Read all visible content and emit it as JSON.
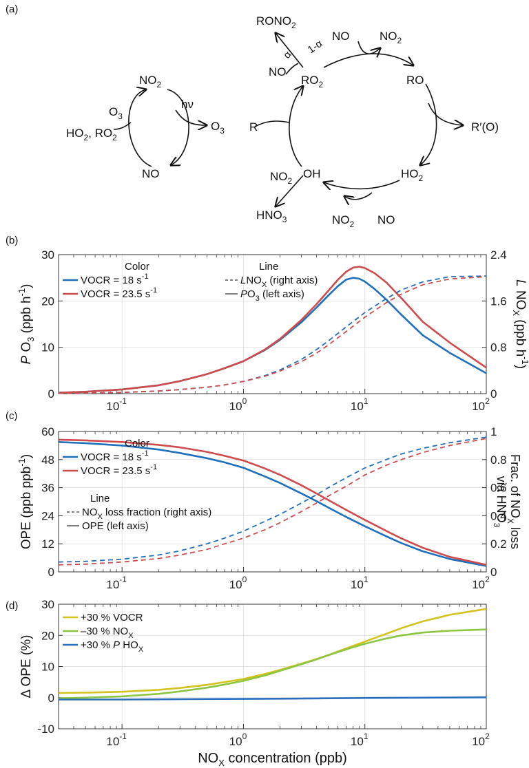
{
  "panel_a": {
    "label": "(a)",
    "left_cycle": {
      "no2": "NO",
      "no2_sub": "2",
      "hv": "hν",
      "o3_out": "O",
      "o3_out_sub": "3",
      "o3_in": "O",
      "o3_in_sub": "3",
      "ho2": "HO",
      "ho2_sub": "2",
      "ro2": ", RO",
      "ro2_sub": "2",
      "no": "NO"
    },
    "right_cycle": {
      "rono2": "RONO",
      "rono2_sub": "2",
      "no_alpha": "NO",
      "alpha": "α",
      "one_minus_alpha": "1-α",
      "no_top": "NO",
      "no2_top": "NO",
      "no2_top_sub": "2",
      "ro2": "RO",
      "ro2_sub": "2",
      "ro": "RO",
      "r": "R",
      "rprime": "R′(O)",
      "oh": "OH",
      "ho2": "HO",
      "ho2_sub": "2",
      "no2_oh": "NO",
      "no2_oh_sub": "2",
      "hno3": "HNO",
      "hno3_sub": "3",
      "no2_bottom": "NO",
      "no2_bottom_sub": "2",
      "no_bottom": "NO"
    }
  },
  "chart_data": [
    {
      "panel": "(b)",
      "type": "line",
      "x_scale": "log",
      "xlim": [
        0.03,
        100
      ],
      "x_ticks": [
        {
          "base": "10",
          "exp": "-1"
        },
        {
          "base": "10",
          "exp": "0"
        },
        {
          "base": "10",
          "exp": "1"
        },
        {
          "base": "10",
          "exp": "2"
        }
      ],
      "ylabel_left": {
        "prefix": "P",
        "main": " O",
        "sub": "3",
        "unit": " (ppb h",
        "unit_sup": "-1",
        "unit_end": ")"
      },
      "ylabel_right": {
        "prefix": "L",
        "main": " NO",
        "sub": "X",
        "unit": " (ppb h",
        "unit_sup": "-1",
        "unit_end": ")"
      },
      "ylim_left": [
        0,
        30
      ],
      "ylim_right": [
        0,
        2.4
      ],
      "yticks_left": [
        "0",
        "10",
        "20",
        "30"
      ],
      "yticks_right": [
        "0",
        "0.8",
        "1.6",
        "2.4"
      ],
      "grid": true,
      "legend": {
        "color_title": "Color",
        "line_title": "Line",
        "entries": [
          {
            "text": "VOCR = 18 s",
            "sup": "-1",
            "color": "#1f6fbf"
          },
          {
            "text": "VOCR = 23.5 s",
            "sup": "-1",
            "color": "#cf4a4a"
          }
        ],
        "line_entries": [
          {
            "prefix": "L",
            "text": "NO",
            "sub": "X",
            "rest": " (right axis)",
            "style": "dashed"
          },
          {
            "prefix": "P",
            "text": "O",
            "sub": "3",
            "rest": " (left axis)",
            "style": "solid"
          }
        ]
      },
      "series": [
        {
          "name": "VOCR = 18 s-1",
          "axis": "left",
          "style": "solid",
          "color": "#1f6fbf",
          "x": [
            0.03,
            0.05,
            0.1,
            0.2,
            0.3,
            0.5,
            0.7,
            1,
            1.5,
            2,
            3,
            4,
            5,
            6,
            7,
            8,
            9,
            10,
            12,
            15,
            20,
            30,
            50,
            100
          ],
          "y": [
            0.2,
            0.4,
            0.9,
            1.8,
            2.7,
            4.2,
            5.5,
            7.0,
            9.4,
            11.6,
            15.4,
            18.6,
            21.2,
            23.2,
            24.6,
            25.0,
            24.8,
            24.2,
            22.6,
            20.3,
            17.0,
            12.6,
            8.8,
            4.4
          ]
        },
        {
          "name": "VOCR = 23.5 s-1",
          "axis": "left",
          "style": "solid",
          "color": "#cf4a4a",
          "x": [
            0.03,
            0.05,
            0.1,
            0.2,
            0.3,
            0.5,
            0.7,
            1,
            1.5,
            2,
            3,
            4,
            5,
            6,
            7,
            8,
            9,
            10,
            12,
            15,
            20,
            30,
            50,
            100
          ],
          "y": [
            0.2,
            0.4,
            0.9,
            1.8,
            2.7,
            4.2,
            5.5,
            7.0,
            9.5,
            11.8,
            15.9,
            19.3,
            22.2,
            24.6,
            26.3,
            27.2,
            27.4,
            27.1,
            26.0,
            24.0,
            20.6,
            15.5,
            11.0,
            5.6
          ]
        },
        {
          "name": "VOCR = 18 s-1",
          "axis": "right",
          "style": "dashed",
          "color": "#1f6fbf",
          "x": [
            0.03,
            0.05,
            0.1,
            0.2,
            0.3,
            0.5,
            0.7,
            1,
            1.5,
            2,
            3,
            4,
            5,
            7,
            10,
            15,
            20,
            30,
            50,
            100
          ],
          "y": [
            0.005,
            0.01,
            0.02,
            0.045,
            0.07,
            0.11,
            0.15,
            0.21,
            0.31,
            0.41,
            0.59,
            0.76,
            0.91,
            1.15,
            1.4,
            1.64,
            1.79,
            1.93,
            2.02,
            2.03
          ]
        },
        {
          "name": "VOCR = 23.5 s-1",
          "axis": "right",
          "style": "dashed",
          "color": "#cf4a4a",
          "x": [
            0.03,
            0.05,
            0.1,
            0.2,
            0.3,
            0.5,
            0.7,
            1,
            1.5,
            2,
            3,
            4,
            5,
            7,
            10,
            15,
            20,
            30,
            50,
            100
          ],
          "y": [
            0.005,
            0.01,
            0.02,
            0.045,
            0.07,
            0.11,
            0.15,
            0.21,
            0.3,
            0.39,
            0.55,
            0.7,
            0.84,
            1.07,
            1.32,
            1.57,
            1.72,
            1.88,
            1.98,
            2.02
          ]
        }
      ]
    },
    {
      "panel": "(c)",
      "type": "line",
      "x_scale": "log",
      "xlim": [
        0.03,
        100
      ],
      "x_ticks": [
        {
          "base": "10",
          "exp": "-1"
        },
        {
          "base": "10",
          "exp": "0"
        },
        {
          "base": "10",
          "exp": "1"
        },
        {
          "base": "10",
          "exp": "2"
        }
      ],
      "ylabel_left": {
        "prefix": "",
        "main": "OPE (ppb ppb",
        "sub": "",
        "unit": "",
        "unit_sup": "-1",
        "unit_end": ")"
      },
      "ylabel_right_line1": {
        "text": "Frac. of NO",
        "sub": "X",
        "rest": " loss"
      },
      "ylabel_right_line2": {
        "text": "via HNO",
        "sub": "3"
      },
      "ylim_left": [
        0,
        60
      ],
      "ylim_right": [
        0,
        1
      ],
      "yticks_left": [
        "0",
        "12",
        "24",
        "36",
        "48",
        "60"
      ],
      "yticks_right": [
        "0",
        "0.2",
        "0.4",
        "0.6",
        "0.8",
        "1"
      ],
      "grid": true,
      "legend": {
        "color_title": "Color",
        "line_title": "Line",
        "entries": [
          {
            "text": "VOCR = 18 s",
            "sup": "-1",
            "color": "#1f6fbf"
          },
          {
            "text": "VOCR = 23.5 s",
            "sup": "-1",
            "color": "#cf4a4a"
          }
        ],
        "line_entries": [
          {
            "prefix": "",
            "text": "NO",
            "sub": "X",
            "rest": "  loss fraction (right axis)",
            "style": "dashed"
          },
          {
            "prefix": "",
            "text": "OPE",
            "sub": "",
            "rest": "  (left axis)",
            "style": "solid"
          }
        ]
      },
      "series": [
        {
          "name": "VOCR = 18 s-1",
          "axis": "left",
          "style": "solid",
          "color": "#1f6fbf",
          "x": [
            0.03,
            0.05,
            0.1,
            0.2,
            0.3,
            0.5,
            0.7,
            1,
            1.5,
            2,
            3,
            4,
            5,
            7,
            10,
            15,
            20,
            30,
            50,
            100
          ],
          "y": [
            55.5,
            55.0,
            54.0,
            52.3,
            50.8,
            48.6,
            46.8,
            44.5,
            40.8,
            38.0,
            33.5,
            30.2,
            27.5,
            23.5,
            19.5,
            15.2,
            12.3,
            8.8,
            5.5,
            2.5
          ]
        },
        {
          "name": "VOCR = 23.5 s-1",
          "axis": "left",
          "style": "solid",
          "color": "#cf4a4a",
          "x": [
            0.03,
            0.05,
            0.1,
            0.2,
            0.3,
            0.5,
            0.7,
            1,
            1.5,
            2,
            3,
            4,
            5,
            7,
            10,
            15,
            20,
            30,
            50,
            100
          ],
          "y": [
            56.5,
            56.2,
            55.5,
            54.3,
            53.2,
            51.3,
            49.6,
            47.6,
            44.2,
            41.5,
            37.0,
            33.5,
            30.7,
            26.5,
            22.2,
            17.5,
            14.3,
            10.3,
            6.4,
            3.0
          ]
        },
        {
          "name": "VOCR = 18 s-1",
          "axis": "right",
          "style": "dashed",
          "color": "#1f6fbf",
          "x": [
            0.03,
            0.05,
            0.1,
            0.2,
            0.3,
            0.5,
            0.7,
            1,
            1.5,
            2,
            3,
            4,
            5,
            7,
            10,
            15,
            20,
            30,
            50,
            100
          ],
          "y": [
            0.07,
            0.075,
            0.09,
            0.12,
            0.15,
            0.2,
            0.24,
            0.29,
            0.36,
            0.41,
            0.49,
            0.55,
            0.6,
            0.67,
            0.74,
            0.8,
            0.84,
            0.88,
            0.92,
            0.96
          ]
        },
        {
          "name": "VOCR = 23.5 s-1",
          "axis": "right",
          "style": "dashed",
          "color": "#cf4a4a",
          "x": [
            0.03,
            0.05,
            0.1,
            0.2,
            0.3,
            0.5,
            0.7,
            1,
            1.5,
            2,
            3,
            4,
            5,
            7,
            10,
            15,
            20,
            30,
            50,
            100
          ],
          "y": [
            0.05,
            0.055,
            0.07,
            0.095,
            0.12,
            0.16,
            0.2,
            0.24,
            0.3,
            0.35,
            0.43,
            0.49,
            0.54,
            0.61,
            0.69,
            0.76,
            0.8,
            0.85,
            0.9,
            0.95
          ]
        }
      ]
    },
    {
      "panel": "(d)",
      "type": "line",
      "x_scale": "log",
      "xlim": [
        0.03,
        100
      ],
      "x_ticks": [
        {
          "base": "10",
          "exp": "-1"
        },
        {
          "base": "10",
          "exp": "0"
        },
        {
          "base": "10",
          "exp": "1"
        },
        {
          "base": "10",
          "exp": "2"
        }
      ],
      "ylabel_left": {
        "prefix": "",
        "main": "Δ OPE (%)",
        "sub": "",
        "unit": "",
        "unit_sup": "",
        "unit_end": ""
      },
      "ylim_left": [
        -10,
        30
      ],
      "yticks_left": [
        "-10",
        "0",
        "10",
        "20",
        "30"
      ],
      "xlabel": {
        "text": "NO",
        "sub": "X",
        "rest": " concentration (ppb)"
      },
      "grid": true,
      "legend": {
        "entries": [
          {
            "prefix": "",
            "text": "+30 % VOCR",
            "sub": "",
            "color": "#d4c21c"
          },
          {
            "prefix": "",
            "text": "–30 % NO",
            "sub": "X",
            "color": "#8cc63f"
          },
          {
            "prefix": "+30 % ",
            "italic": "P",
            "text": " HO",
            "sub": "X",
            "color": "#2a6ec0"
          }
        ]
      },
      "series": [
        {
          "name": "+30 % VOCR",
          "axis": "left",
          "style": "solid",
          "color": "#d4c21c",
          "x": [
            0.03,
            0.05,
            0.1,
            0.2,
            0.3,
            0.5,
            0.7,
            1,
            1.5,
            2,
            3,
            4,
            5,
            7,
            10,
            15,
            20,
            30,
            50,
            100
          ],
          "y": [
            1.5,
            1.6,
            1.9,
            2.5,
            3.1,
            4.1,
            5.0,
            6.0,
            7.6,
            8.9,
            10.9,
            12.4,
            13.7,
            15.8,
            18.0,
            20.5,
            22.3,
            24.5,
            26.6,
            28.5
          ]
        },
        {
          "name": "-30 % NOX",
          "axis": "left",
          "style": "solid",
          "color": "#8cc63f",
          "x": [
            0.03,
            0.05,
            0.1,
            0.2,
            0.3,
            0.5,
            0.7,
            1,
            1.5,
            2,
            3,
            4,
            5,
            7,
            10,
            15,
            20,
            30,
            50,
            100
          ],
          "y": [
            -0.2,
            0.0,
            0.4,
            1.2,
            2.0,
            3.2,
            4.2,
            5.4,
            7.1,
            8.6,
            10.7,
            12.3,
            13.6,
            15.5,
            17.3,
            19.0,
            20.0,
            20.9,
            21.5,
            21.9
          ]
        },
        {
          "name": "+30 % P HOX",
          "axis": "left",
          "style": "solid",
          "color": "#2a6ec0",
          "x": [
            0.03,
            0.1,
            0.3,
            1,
            3,
            10,
            30,
            100
          ],
          "y": [
            -0.6,
            -0.6,
            -0.5,
            -0.4,
            -0.3,
            -0.1,
            0.0,
            0.1
          ]
        }
      ]
    }
  ]
}
